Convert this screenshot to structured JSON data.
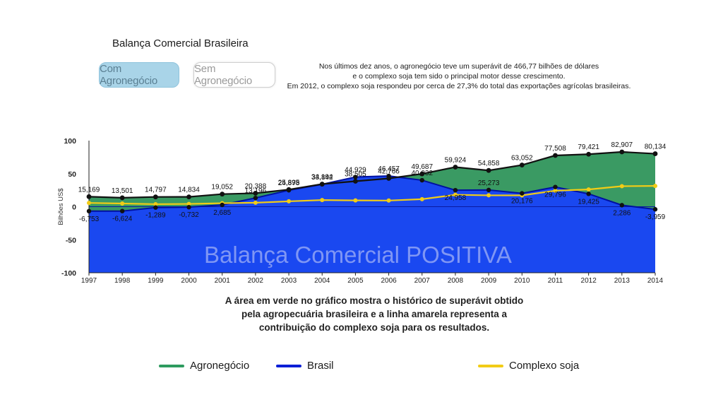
{
  "title": "Balança Comercial Brasileira",
  "buttons": {
    "with_agro": "Com Agronegócio",
    "without_agro": "Sem Agronegócio"
  },
  "note": [
    "Nos últimos dez anos, o agronegócio teve um superávit de 466,77 bilhões de dólares",
    "e o complexo soja tem sido o principal motor desse crescimento.",
    "Em 2012, o complexo soja respondeu por cerca de 27,3% do total das exportações agrícolas brasileiras."
  ],
  "caption": [
    "A área em verde no gráfico mostra o histórico de superávit obtido",
    "pela agropecuária brasileira e a linha amarela representa a",
    "contribuição do complexo soja para os resultados."
  ],
  "colors": {
    "agro": "#2e9b5f",
    "agro_fill": "#3a9a63",
    "brasil": "#0b1fd6",
    "brasil_fill": "#1a48f0",
    "soja": "#f2cc16",
    "button_active_bg": "#a9d4e8"
  },
  "chart_data": {
    "type": "area",
    "ylabel": "Bilhões US$",
    "ylim": [
      -100,
      100
    ],
    "yticks": [
      100,
      50,
      0,
      -50,
      -100
    ],
    "x": [
      1997,
      1998,
      1999,
      2000,
      2001,
      2002,
      2003,
      2004,
      2005,
      2006,
      2007,
      2008,
      2009,
      2010,
      2011,
      2012,
      2013,
      2014
    ],
    "watermark": "Balança Comercial POSITIVA",
    "series": [
      {
        "name": "Agronegócio",
        "key": "agro",
        "values": [
          15.169,
          13.501,
          14.797,
          14.834,
          19.052,
          20.388,
          25.895,
          34.194,
          38.505,
          42.766,
          49.687,
          59.924,
          54.858,
          63.052,
          77.508,
          79.421,
          82.907,
          80.134
        ],
        "labels": [
          "15,169",
          "13,501",
          "14,797",
          "14,834",
          "19,052",
          "20,388",
          "25,895",
          "34,194",
          "38,505",
          "42,766",
          "49,687",
          "59,924",
          "54,858",
          "63,052",
          "77,508",
          "79,421",
          "82,907",
          "80,134"
        ]
      },
      {
        "name": "Brasil",
        "key": "brasil",
        "values": [
          -6.753,
          -6.624,
          -1.289,
          -0.732,
          2.685,
          13.196,
          24.878,
          33.842,
          44.929,
          46.457,
          40.032,
          24.958,
          25.273,
          20.176,
          29.796,
          19.425,
          2.286,
          -3.959
        ],
        "labels": [
          "-6,753",
          "-6,624",
          "-1,289",
          "-0,732",
          "2,685",
          "13,196",
          "24,878",
          "33,842",
          "44,929",
          "46,457",
          "40,032",
          "24,958",
          "25,273",
          "20,176",
          "29,796",
          "19,425",
          "2,286",
          "-3,959"
        ]
      },
      {
        "name": "Complexo soja",
        "key": "soja",
        "values": [
          5.7,
          4.8,
          3.8,
          4.2,
          5.3,
          6.0,
          8.1,
          10.0,
          9.5,
          9.3,
          11.4,
          18.0,
          17.2,
          17.1,
          24.2,
          26.1,
          31.0,
          31.4
        ]
      }
    ],
    "legend": [
      "Agronegócio",
      "Brasil",
      "Complexo soja"
    ],
    "legend_position": "bottom",
    "grid": false
  }
}
